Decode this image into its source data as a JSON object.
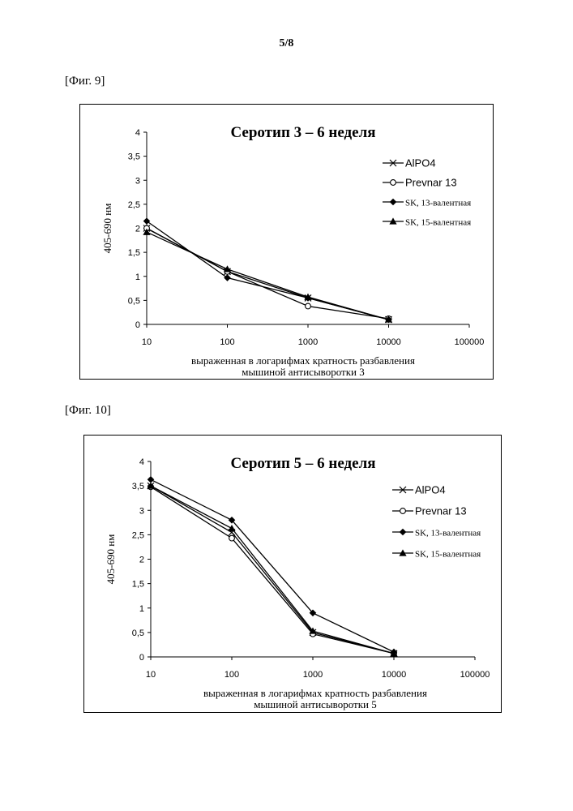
{
  "page": {
    "number": "5/8",
    "fig9_label": "[Фиг. 9]",
    "fig10_label": "[Фиг. 10]"
  },
  "chart_data": [
    {
      "type": "line",
      "title": "Серотип 3 – 6 неделя",
      "ylabel": "405-690 нм",
      "xlabel_line1": "выраженная в логарифмах кратность разбавления",
      "xlabel_line2": "мышиной антисыворотки 3",
      "x_scale": "log",
      "x_ticks": [
        "10",
        "100",
        "1000",
        "10000",
        "100000"
      ],
      "y_ticks": [
        "0",
        "0,5",
        "1",
        "1,5",
        "2",
        "2,5",
        "3",
        "3,5",
        "4"
      ],
      "ylim": [
        0,
        4
      ],
      "xlim": [
        10,
        100000
      ],
      "legend_position": "right",
      "x": [
        10,
        100,
        1000,
        10000
      ],
      "series": [
        {
          "name": "AlPO4",
          "marker": "x",
          "values": [
            2.0,
            1.1,
            0.55,
            0.1
          ]
        },
        {
          "name": "Prevnar 13",
          "marker": "circle",
          "values": [
            2.0,
            1.1,
            0.38,
            0.12
          ]
        },
        {
          "name": "SK, 13-валентная",
          "marker": "diamond",
          "values": [
            2.15,
            0.97,
            0.55,
            0.1
          ]
        },
        {
          "name": "SK, 15-валентная",
          "marker": "triangle",
          "values": [
            1.92,
            1.15,
            0.57,
            0.1
          ]
        }
      ]
    },
    {
      "type": "line",
      "title": "Серотип 5 – 6 неделя",
      "ylabel": "405-690 нм",
      "xlabel_line1": "выраженная в логарифмах кратность разбавления",
      "xlabel_line2": "мышиной антисыворотки 5",
      "x_scale": "log",
      "x_ticks": [
        "10",
        "100",
        "1000",
        "10000",
        "100000"
      ],
      "y_ticks": [
        "0",
        "0,5",
        "1",
        "1,5",
        "2",
        "2,5",
        "3",
        "3,5",
        "4"
      ],
      "ylim": [
        0,
        4
      ],
      "xlim": [
        10,
        100000
      ],
      "legend_position": "right",
      "x": [
        10,
        100,
        1000,
        10000
      ],
      "series": [
        {
          "name": "AlPO4",
          "marker": "x",
          "values": [
            3.5,
            2.55,
            0.5,
            0.07
          ]
        },
        {
          "name": "Prevnar 13",
          "marker": "circle",
          "values": [
            3.48,
            2.43,
            0.47,
            0.07
          ]
        },
        {
          "name": "SK, 13-валентная",
          "marker": "diamond",
          "values": [
            3.63,
            2.8,
            0.9,
            0.1
          ]
        },
        {
          "name": "SK, 15-валентная",
          "marker": "triangle",
          "values": [
            3.5,
            2.63,
            0.53,
            0.07
          ]
        }
      ]
    }
  ]
}
